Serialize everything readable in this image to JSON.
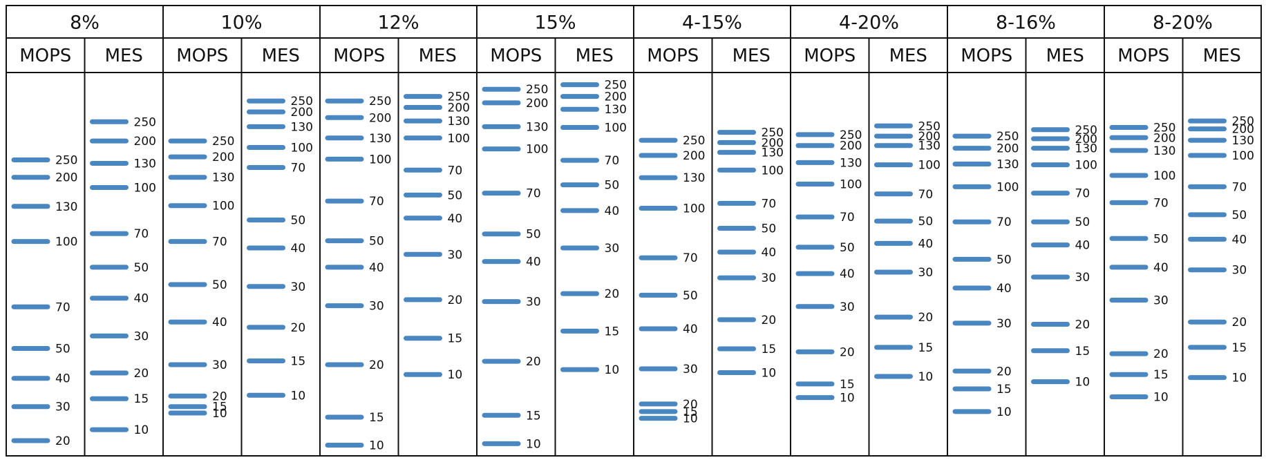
{
  "chart_data": {
    "type": "ladder",
    "band_color": "#4a86c0",
    "gels": [
      {
        "label": "8%",
        "lanes": [
          {
            "label": "MOPS",
            "bands": [
              {
                "kda": "250",
                "pos": 0.224
              },
              {
                "kda": "200",
                "pos": 0.27
              },
              {
                "kda": "130",
                "pos": 0.347
              },
              {
                "kda": "100",
                "pos": 0.44
              },
              {
                "kda": "70",
                "pos": 0.613
              },
              {
                "kda": "50",
                "pos": 0.723
              },
              {
                "kda": "40",
                "pos": 0.802
              },
              {
                "kda": "30",
                "pos": 0.877
              },
              {
                "kda": "20",
                "pos": 0.967
              }
            ]
          },
          {
            "label": "MES",
            "bands": [
              {
                "kda": "250",
                "pos": 0.123
              },
              {
                "kda": "200",
                "pos": 0.174
              },
              {
                "kda": "130",
                "pos": 0.233
              },
              {
                "kda": "100",
                "pos": 0.297
              },
              {
                "kda": "70",
                "pos": 0.419
              },
              {
                "kda": "50",
                "pos": 0.508
              },
              {
                "kda": "40",
                "pos": 0.59
              },
              {
                "kda": "30",
                "pos": 0.69
              },
              {
                "kda": "20",
                "pos": 0.788
              },
              {
                "kda": "15",
                "pos": 0.856
              },
              {
                "kda": "10",
                "pos": 0.938
              }
            ]
          }
        ]
      },
      {
        "label": "10%",
        "lanes": [
          {
            "label": "MOPS",
            "bands": [
              {
                "kda": "250",
                "pos": 0.174
              },
              {
                "kda": "200",
                "pos": 0.216
              },
              {
                "kda": "130",
                "pos": 0.27
              },
              {
                "kda": "100",
                "pos": 0.345
              },
              {
                "kda": "70",
                "pos": 0.44
              },
              {
                "kda": "50",
                "pos": 0.554
              },
              {
                "kda": "40",
                "pos": 0.653
              },
              {
                "kda": "30",
                "pos": 0.766
              },
              {
                "kda": "20",
                "pos": 0.849
              },
              {
                "kda": "15",
                "pos": 0.877
              },
              {
                "kda": "10",
                "pos": 0.894
              }
            ]
          },
          {
            "label": "MES",
            "bands": [
              {
                "kda": "250",
                "pos": 0.068
              },
              {
                "kda": "200",
                "pos": 0.097
              },
              {
                "kda": "130",
                "pos": 0.136
              },
              {
                "kda": "100",
                "pos": 0.191
              },
              {
                "kda": "70",
                "pos": 0.244
              },
              {
                "kda": "50",
                "pos": 0.383
              },
              {
                "kda": "40",
                "pos": 0.457
              },
              {
                "kda": "30",
                "pos": 0.559
              },
              {
                "kda": "20",
                "pos": 0.667
              },
              {
                "kda": "15",
                "pos": 0.756
              },
              {
                "kda": "10",
                "pos": 0.847
              }
            ]
          }
        ]
      },
      {
        "label": "12%",
        "lanes": [
          {
            "label": "MOPS",
            "bands": [
              {
                "kda": "250",
                "pos": 0.068
              },
              {
                "kda": "200",
                "pos": 0.112
              },
              {
                "kda": "130",
                "pos": 0.166
              },
              {
                "kda": "100",
                "pos": 0.222
              },
              {
                "kda": "70",
                "pos": 0.333
              },
              {
                "kda": "50",
                "pos": 0.438
              },
              {
                "kda": "40",
                "pos": 0.508
              },
              {
                "kda": "30",
                "pos": 0.61
              },
              {
                "kda": "20",
                "pos": 0.766
              },
              {
                "kda": "15",
                "pos": 0.905
              },
              {
                "kda": "10",
                "pos": 0.979
              }
            ]
          },
          {
            "label": "MES",
            "bands": [
              {
                "kda": "250",
                "pos": 0.056
              },
              {
                "kda": "200",
                "pos": 0.085
              },
              {
                "kda": "130",
                "pos": 0.121
              },
              {
                "kda": "100",
                "pos": 0.166
              },
              {
                "kda": "70",
                "pos": 0.251
              },
              {
                "kda": "50",
                "pos": 0.317
              },
              {
                "kda": "40",
                "pos": 0.378
              },
              {
                "kda": "30",
                "pos": 0.474
              },
              {
                "kda": "20",
                "pos": 0.594
              },
              {
                "kda": "15",
                "pos": 0.696
              },
              {
                "kda": "10",
                "pos": 0.792
              }
            ]
          }
        ]
      },
      {
        "label": "15%",
        "lanes": [
          {
            "label": "MOPS",
            "bands": [
              {
                "kda": "250",
                "pos": 0.037
              },
              {
                "kda": "200",
                "pos": 0.073
              },
              {
                "kda": "130",
                "pos": 0.136
              },
              {
                "kda": "100",
                "pos": 0.195
              },
              {
                "kda": "70",
                "pos": 0.312
              },
              {
                "kda": "50",
                "pos": 0.42
              },
              {
                "kda": "40",
                "pos": 0.493
              },
              {
                "kda": "30",
                "pos": 0.599
              },
              {
                "kda": "20",
                "pos": 0.757
              },
              {
                "kda": "15",
                "pos": 0.9
              },
              {
                "kda": "10",
                "pos": 0.975
              }
            ]
          },
          {
            "label": "MES",
            "bands": [
              {
                "kda": "250",
                "pos": 0.025
              },
              {
                "kda": "200",
                "pos": 0.056
              },
              {
                "kda": "130",
                "pos": 0.09
              },
              {
                "kda": "100",
                "pos": 0.138
              },
              {
                "kda": "70",
                "pos": 0.225
              },
              {
                "kda": "50",
                "pos": 0.29
              },
              {
                "kda": "40",
                "pos": 0.358
              },
              {
                "kda": "30",
                "pos": 0.457
              },
              {
                "kda": "20",
                "pos": 0.578
              },
              {
                "kda": "15",
                "pos": 0.677
              },
              {
                "kda": "10",
                "pos": 0.779
              }
            ]
          }
        ]
      },
      {
        "label": "4-15%",
        "lanes": [
          {
            "label": "MOPS",
            "bands": [
              {
                "kda": "250",
                "pos": 0.172
              },
              {
                "kda": "200",
                "pos": 0.212
              },
              {
                "kda": "130",
                "pos": 0.271
              },
              {
                "kda": "100",
                "pos": 0.352
              },
              {
                "kda": "70",
                "pos": 0.483
              },
              {
                "kda": "50",
                "pos": 0.582
              },
              {
                "kda": "40",
                "pos": 0.671
              },
              {
                "kda": "30",
                "pos": 0.777
              },
              {
                "kda": "20",
                "pos": 0.87
              },
              {
                "kda": "15",
                "pos": 0.89
              },
              {
                "kda": "10",
                "pos": 0.908
              }
            ]
          },
          {
            "label": "MES",
            "bands": [
              {
                "kda": "250",
                "pos": 0.151
              },
              {
                "kda": "200",
                "pos": 0.178
              },
              {
                "kda": "130",
                "pos": 0.204
              },
              {
                "kda": "100",
                "pos": 0.251
              },
              {
                "kda": "70",
                "pos": 0.339
              },
              {
                "kda": "50",
                "pos": 0.405
              },
              {
                "kda": "40",
                "pos": 0.468
              },
              {
                "kda": "30",
                "pos": 0.536
              },
              {
                "kda": "20",
                "pos": 0.647
              },
              {
                "kda": "15",
                "pos": 0.724
              },
              {
                "kda": "10",
                "pos": 0.787
              }
            ]
          }
        ]
      },
      {
        "label": "4-20%",
        "lanes": [
          {
            "label": "MOPS",
            "bands": [
              {
                "kda": "250",
                "pos": 0.157
              },
              {
                "kda": "200",
                "pos": 0.186
              },
              {
                "kda": "130",
                "pos": 0.231
              },
              {
                "kda": "100",
                "pos": 0.288
              },
              {
                "kda": "70",
                "pos": 0.375
              },
              {
                "kda": "50",
                "pos": 0.455
              },
              {
                "kda": "40",
                "pos": 0.525
              },
              {
                "kda": "30",
                "pos": 0.612
              },
              {
                "kda": "20",
                "pos": 0.732
              },
              {
                "kda": "15",
                "pos": 0.817
              },
              {
                "kda": "10",
                "pos": 0.853
              }
            ]
          },
          {
            "label": "MES",
            "bands": [
              {
                "kda": "250",
                "pos": 0.134
              },
              {
                "kda": "200",
                "pos": 0.161
              },
              {
                "kda": "130",
                "pos": 0.186
              },
              {
                "kda": "100",
                "pos": 0.237
              },
              {
                "kda": "70",
                "pos": 0.314
              },
              {
                "kda": "50",
                "pos": 0.386
              },
              {
                "kda": "40",
                "pos": 0.445
              },
              {
                "kda": "30",
                "pos": 0.521
              },
              {
                "kda": "20",
                "pos": 0.64
              },
              {
                "kda": "15",
                "pos": 0.72
              },
              {
                "kda": "10",
                "pos": 0.797
              }
            ]
          }
        ]
      },
      {
        "label": "8-16%",
        "lanes": [
          {
            "label": "MOPS",
            "bands": [
              {
                "kda": "250",
                "pos": 0.161
              },
              {
                "kda": "200",
                "pos": 0.193
              },
              {
                "kda": "130",
                "pos": 0.235
              },
              {
                "kda": "100",
                "pos": 0.295
              },
              {
                "kda": "70",
                "pos": 0.388
              },
              {
                "kda": "50",
                "pos": 0.487
              },
              {
                "kda": "40",
                "pos": 0.563
              },
              {
                "kda": "30",
                "pos": 0.656
              },
              {
                "kda": "20",
                "pos": 0.783
              },
              {
                "kda": "15",
                "pos": 0.83
              },
              {
                "kda": "10",
                "pos": 0.89
              }
            ]
          },
          {
            "label": "MES",
            "bands": [
              {
                "kda": "250",
                "pos": 0.144
              },
              {
                "kda": "200",
                "pos": 0.168
              },
              {
                "kda": "130",
                "pos": 0.193
              },
              {
                "kda": "100",
                "pos": 0.237
              },
              {
                "kda": "70",
                "pos": 0.312
              },
              {
                "kda": "50",
                "pos": 0.388
              },
              {
                "kda": "40",
                "pos": 0.449
              },
              {
                "kda": "30",
                "pos": 0.534
              },
              {
                "kda": "20",
                "pos": 0.659
              },
              {
                "kda": "15",
                "pos": 0.729
              },
              {
                "kda": "10",
                "pos": 0.811
              }
            ]
          }
        ]
      },
      {
        "label": "8-20%",
        "lanes": [
          {
            "label": "MOPS",
            "bands": [
              {
                "kda": "250",
                "pos": 0.138
              },
              {
                "kda": "200",
                "pos": 0.165
              },
              {
                "kda": "130",
                "pos": 0.199
              },
              {
                "kda": "100",
                "pos": 0.265
              },
              {
                "kda": "70",
                "pos": 0.337
              },
              {
                "kda": "50",
                "pos": 0.432
              },
              {
                "kda": "40",
                "pos": 0.508
              },
              {
                "kda": "30",
                "pos": 0.595
              },
              {
                "kda": "20",
                "pos": 0.737
              },
              {
                "kda": "15",
                "pos": 0.792
              },
              {
                "kda": "10",
                "pos": 0.851
              }
            ]
          },
          {
            "label": "MES",
            "bands": [
              {
                "kda": "250",
                "pos": 0.121
              },
              {
                "kda": "200",
                "pos": 0.142
              },
              {
                "kda": "130",
                "pos": 0.172
              },
              {
                "kda": "100",
                "pos": 0.212
              },
              {
                "kda": "70",
                "pos": 0.295
              },
              {
                "kda": "50",
                "pos": 0.369
              },
              {
                "kda": "40",
                "pos": 0.434
              },
              {
                "kda": "30",
                "pos": 0.515
              },
              {
                "kda": "20",
                "pos": 0.653
              },
              {
                "kda": "15",
                "pos": 0.72
              },
              {
                "kda": "10",
                "pos": 0.8
              }
            ]
          }
        ]
      }
    ]
  }
}
